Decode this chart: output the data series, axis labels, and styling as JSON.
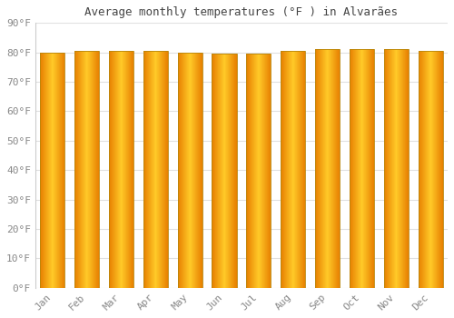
{
  "title": "Average monthly temperatures (°F ) in Alvarães",
  "months": [
    "Jan",
    "Feb",
    "Mar",
    "Apr",
    "May",
    "Jun",
    "Jul",
    "Aug",
    "Sep",
    "Oct",
    "Nov",
    "Dec"
  ],
  "values": [
    80.0,
    80.5,
    80.5,
    80.5,
    80.0,
    79.5,
    79.5,
    80.5,
    81.0,
    81.0,
    81.0,
    80.5
  ],
  "ylim": [
    0,
    90
  ],
  "yticks": [
    0,
    10,
    20,
    30,
    40,
    50,
    60,
    70,
    80,
    90
  ],
  "ytick_labels": [
    "0°F",
    "10°F",
    "20°F",
    "30°F",
    "40°F",
    "50°F",
    "60°F",
    "70°F",
    "80°F",
    "90°F"
  ],
  "bar_color_center": "#FFCA28",
  "bar_color_edge": "#E67E00",
  "bar_edge_color": "#B8860B",
  "background_color": "#FFFFFF",
  "grid_color": "#E0E0E0",
  "title_fontsize": 9,
  "tick_fontsize": 8,
  "font_family": "monospace",
  "tick_color": "#888888",
  "bar_width": 0.72
}
